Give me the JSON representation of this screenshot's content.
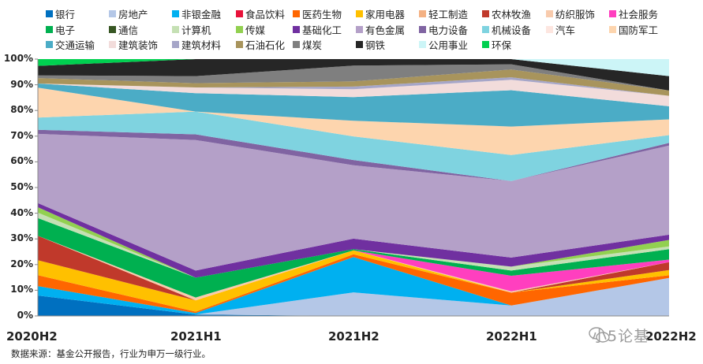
{
  "chart_data": {
    "type": "area",
    "stacked": true,
    "percent": true,
    "title": "",
    "xlabel": "",
    "ylabel": "",
    "ylim": [
      0,
      100
    ],
    "yticks": [
      "0%",
      "10%",
      "20%",
      "30%",
      "40%",
      "50%",
      "60%",
      "70%",
      "80%",
      "90%",
      "100%"
    ],
    "x": [
      "2020H2",
      "2021H1",
      "2021H2",
      "2022H1",
      "2022H2"
    ],
    "legend_position": "top",
    "series": [
      {
        "name": "银行",
        "color": "#0070c0",
        "values": [
          7.5,
          0.5,
          0,
          0,
          0
        ]
      },
      {
        "name": "房地产",
        "color": "#b4c7e7",
        "values": [
          0,
          0,
          9,
          4,
          14.5
        ]
      },
      {
        "name": "非银金融",
        "color": "#00b0f0",
        "values": [
          3.5,
          0.5,
          13.5,
          0,
          0
        ]
      },
      {
        "name": "食品饮料",
        "color": "#e8123a",
        "values": [
          0,
          0,
          0,
          0,
          0
        ]
      },
      {
        "name": "医药生物",
        "color": "#ff6600",
        "values": [
          4,
          0.5,
          1,
          5,
          1
        ]
      },
      {
        "name": "家用电器",
        "color": "#ffc000",
        "values": [
          5.5,
          4,
          1.5,
          0,
          2
        ]
      },
      {
        "name": "轻工制造",
        "color": "#f4b183",
        "values": [
          0,
          0,
          0,
          0,
          0
        ]
      },
      {
        "name": "农林牧渔",
        "color": "#c0392b",
        "values": [
          9,
          0,
          0,
          0,
          3
        ]
      },
      {
        "name": "纺织服饰",
        "color": "#f8cbad",
        "values": [
          0,
          1,
          0,
          0.5,
          0
        ]
      },
      {
        "name": "社会服务",
        "color": "#ff3fbf",
        "values": [
          0,
          0,
          0,
          6,
          1
        ]
      },
      {
        "name": "电子",
        "color": "#00b050",
        "values": [
          6.5,
          7,
          0.5,
          2,
          4
        ]
      },
      {
        "name": "通信",
        "color": "#375623",
        "values": [
          0,
          0,
          0,
          0,
          0
        ]
      },
      {
        "name": "计算机",
        "color": "#c5e0b4",
        "values": [
          2,
          0,
          0,
          1.5,
          1
        ]
      },
      {
        "name": "传媒",
        "color": "#92d050",
        "values": [
          2,
          0,
          0,
          0,
          2.5
        ]
      },
      {
        "name": "基础化工",
        "color": "#7030a0",
        "values": [
          1.5,
          2.5,
          4,
          3.5,
          2
        ]
      },
      {
        "name": "有色金属",
        "color": "#b4a0c8",
        "values": [
          25.5,
          46,
          28,
          29.5,
          34
        ]
      },
      {
        "name": "电力设备",
        "color": "#8064a2",
        "values": [
          1.5,
          2,
          2,
          0,
          1
        ]
      },
      {
        "name": "机械设备",
        "color": "#7fd3e0",
        "values": [
          4.5,
          8,
          9,
          10,
          3
        ]
      },
      {
        "name": "汽车",
        "color": "#fde6e0",
        "values": [
          0,
          0,
          0,
          0,
          0
        ]
      },
      {
        "name": "国防军工",
        "color": "#fdd5ae",
        "values": [
          0,
          0,
          0,
          0,
          0
        ]
      },
      {
        "name": "交通运输",
        "color": "#4bacc6",
        "values": [
          1.5,
          0,
          0,
          0,
          0
        ]
      },
      {
        "name": "建筑装饰",
        "color": "#f2dcdb",
        "values": [
          3.5,
          2,
          3,
          0,
          0
        ]
      },
      {
        "name": "建筑材料",
        "color": "#a6a6c8",
        "values": [
          0,
          0,
          0,
          0,
          0
        ]
      },
      {
        "name": "石油石化",
        "color": "#a8945c",
        "values": [
          0,
          0,
          0,
          0,
          0
        ]
      },
      {
        "name": "煤炭",
        "color": "#7f7f7f",
        "values": [
          0,
          0,
          0,
          0,
          0
        ]
      },
      {
        "name": "钢铁",
        "color": "#262626",
        "values": [
          0,
          0,
          0,
          0,
          0
        ]
      },
      {
        "name": "公用事业",
        "color": "#ccf5f7",
        "values": [
          0,
          0,
          0,
          0,
          0
        ]
      },
      {
        "name": "环保",
        "color": "#00d050",
        "values": [
          0,
          0,
          0,
          0,
          0
        ]
      }
    ],
    "upper_layers": [
      {
        "name": "国防军工",
        "values": [
          11,
          0,
          6,
          11,
          6
        ]
      },
      {
        "name": "交通运输",
        "values": [
          1.5,
          6.5,
          9,
          14,
          5
        ]
      },
      {
        "name": "汽车",
        "values": [
          0,
          0,
          0,
          0,
          0
        ]
      },
      {
        "name": "建筑装饰",
        "values": [
          0,
          2,
          3,
          4,
          4
        ]
      },
      {
        "name": "建筑材料",
        "values": [
          0,
          0,
          1,
          1,
          0
        ]
      },
      {
        "name": "石油石化",
        "values": [
          2,
          1.5,
          2,
          3,
          2
        ]
      },
      {
        "name": "煤炭",
        "values": [
          1,
          2.5,
          6,
          2,
          0
        ]
      },
      {
        "name": "钢铁",
        "values": [
          3.5,
          6,
          2.5,
          2,
          5.5
        ]
      },
      {
        "name": "公用事业",
        "values": [
          0,
          0,
          0,
          0,
          6.5
        ]
      },
      {
        "name": "环保",
        "values": [
          2.5,
          0,
          0,
          0,
          0
        ]
      }
    ]
  },
  "source_text": "数据来源：基金公开报告，行业为申万一级行业。",
  "watermark_text": "小5论基"
}
